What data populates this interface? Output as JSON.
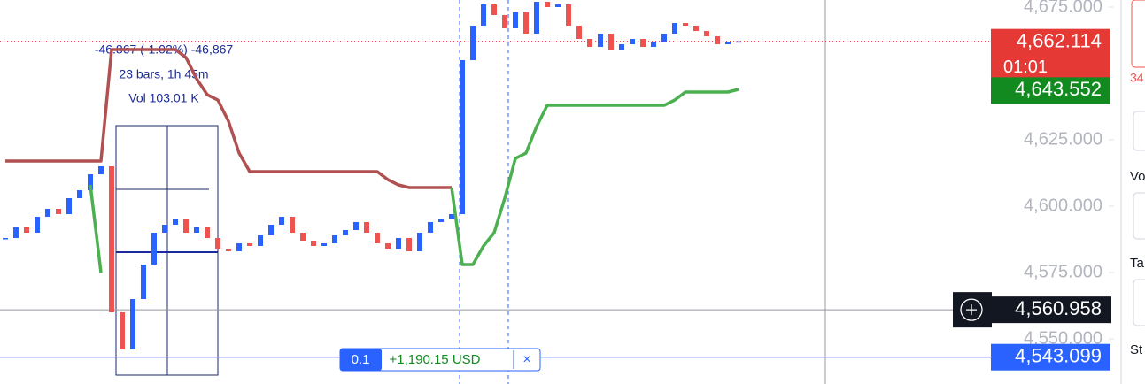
{
  "chart_data": {
    "type": "candlestick",
    "values": [
      4588,
      4592,
      4590,
      4596,
      4599,
      4597,
      4603,
      4606,
      4612,
      4615,
      4560,
      4546,
      4565,
      4578,
      4590,
      4593,
      4595,
      4590,
      4592,
      4588,
      4584,
      4583,
      4586,
      4585,
      4589,
      4593,
      4596,
      4590,
      4587,
      4585,
      4586,
      4589,
      4591,
      4594,
      4590,
      4586,
      4584,
      4588,
      4583,
      4590,
      4594,
      4595,
      4597,
      4655,
      4668,
      4676,
      4672,
      4667,
      4673,
      4665,
      4677,
      4675,
      4676,
      4668,
      4663,
      4660,
      4665,
      4659,
      4661,
      4663,
      4660,
      4662,
      4665,
      4669,
      4668,
      4666,
      4664,
      4661,
      4662,
      4662.114
    ],
    "up_color": "#2962ff",
    "down_color": "#ef5350",
    "series": [
      {
        "color": "#b05050",
        "values": [
          4617,
          4617,
          4617,
          4617,
          4617,
          4617,
          4617,
          4617,
          4617,
          4617,
          4659,
          4659,
          4659,
          4659,
          4659,
          4659,
          4659,
          4656,
          4648,
          4642,
          4640,
          4632,
          4620,
          4613,
          4613,
          4613,
          4613,
          4613,
          4613,
          4613,
          4613,
          4613,
          4613,
          4613,
          4613,
          4613,
          4610,
          4608,
          4607,
          4607,
          4607,
          4607,
          4607,
          null,
          null,
          null,
          null,
          null,
          null,
          null,
          null,
          null,
          null,
          null,
          null,
          null,
          null,
          null,
          null,
          null,
          null,
          null,
          null,
          null,
          null,
          null,
          null,
          null,
          null,
          null
        ]
      },
      {
        "color": "#4caf50",
        "values": [
          null,
          null,
          null,
          null,
          null,
          null,
          null,
          null,
          4608,
          4575,
          null,
          null,
          null,
          null,
          null,
          null,
          null,
          null,
          null,
          null,
          null,
          null,
          null,
          null,
          null,
          null,
          null,
          null,
          null,
          null,
          null,
          null,
          null,
          null,
          null,
          null,
          null,
          null,
          null,
          null,
          null,
          null,
          4607,
          4578,
          4578,
          4585,
          4590,
          4603,
          4618,
          4620,
          4630,
          4638,
          4638,
          4638,
          4638,
          4638,
          4638,
          4638,
          4638,
          4638,
          4638,
          4638,
          4638,
          4640,
          4643,
          4643,
          4643,
          4643,
          4643,
          4644
        ]
      }
    ],
    "ylim": [
      4533,
      4677.67
    ],
    "yticks": [
      {
        "value": 4675,
        "label": "4,675.000"
      },
      {
        "value": 4625,
        "label": "4,625.000"
      },
      {
        "value": 4600,
        "label": "4,600.000"
      },
      {
        "value": 4575,
        "label": "4,575.000"
      },
      {
        "value": 4550,
        "label": "4,550.000"
      }
    ],
    "price_labels": [
      {
        "value": 4662.114,
        "label": "4,662.114",
        "sub": "01:01",
        "color": "#e53935"
      },
      {
        "value": 4643.552,
        "label": "4,643.552",
        "color": "#138a1f"
      },
      {
        "value": 4560.958,
        "label": "4,560.958",
        "color": "#131722"
      },
      {
        "value": 4543.099,
        "label": "4,543.099",
        "color": "#2962ff"
      }
    ],
    "measure": [
      "-46.867 (-1.02%) -46,867",
      "23 bars, 1h 45m",
      "Vol 103.01 K"
    ],
    "position": {
      "quantity": "0.1",
      "pnl": "+1,190.15 USD",
      "close": "×"
    },
    "sidebar": [
      "34",
      "Vo",
      "Ta",
      "St"
    ]
  }
}
